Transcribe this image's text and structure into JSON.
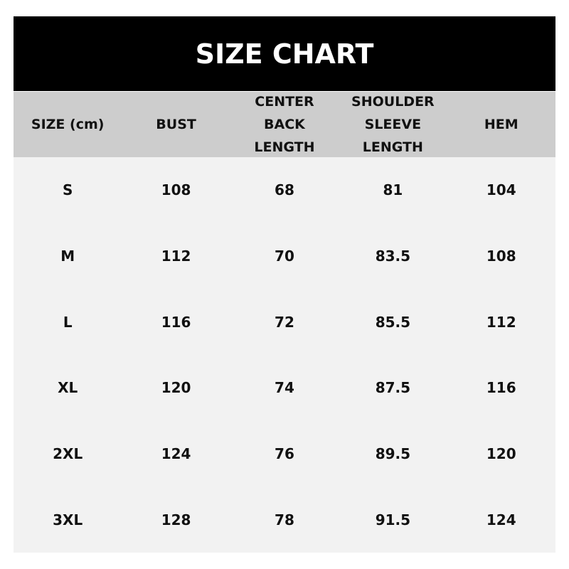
{
  "title": "SIZE CHART",
  "headers": [
    "SIZE  (cm)",
    "BUST",
    "CENTER\nBACK\nLENGTH",
    "SHOULDER\nSLEEVE\nLENGTH",
    "HEM"
  ],
  "rows": [
    [
      "S",
      "108",
      "68",
      "81",
      "104"
    ],
    [
      "M",
      "112",
      "70",
      "83.5",
      "108"
    ],
    [
      "L",
      "116",
      "72",
      "85.5",
      "112"
    ],
    [
      "XL",
      "120",
      "74",
      "87.5",
      "116"
    ],
    [
      "2XL",
      "124",
      "76",
      "89.5",
      "120"
    ],
    [
      "3XL",
      "128",
      "78",
      "91.5",
      "124"
    ]
  ]
}
